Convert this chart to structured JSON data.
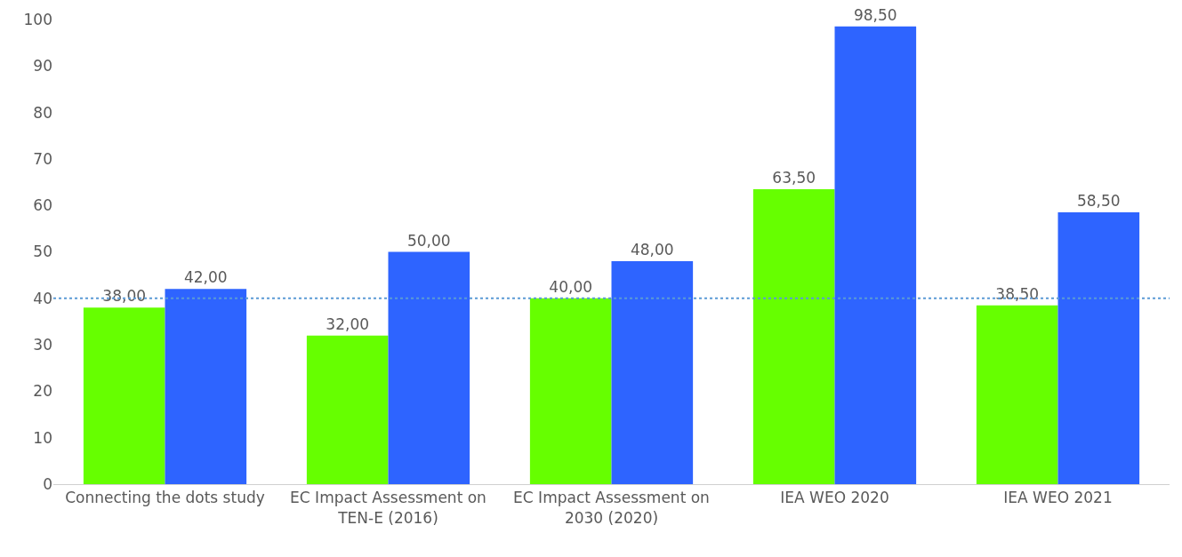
{
  "chart_data": {
    "type": "bar",
    "categories": [
      "Connecting the dots study",
      "EC Impact Assessment on TEN-E (2016)",
      "EC Impact Assessment on 2030 (2020)",
      "IEA WEO 2020",
      "IEA WEO 2021"
    ],
    "series": [
      {
        "color": "#66ff00",
        "values": [
          38,
          32,
          40,
          63.5,
          38.5
        ],
        "value_labels": [
          "38,00",
          "32,00",
          "40,00",
          "63,50",
          "38,50"
        ]
      },
      {
        "color": "#2e64ff",
        "values": [
          42,
          50,
          48,
          98.5,
          58.5
        ],
        "value_labels": [
          "42,00",
          "50,00",
          "48,00",
          "98,50",
          "58,50"
        ]
      }
    ],
    "ylim": [
      0,
      100
    ],
    "yticks": [
      0,
      10,
      20,
      30,
      40,
      50,
      60,
      70,
      80,
      90,
      100
    ],
    "grid": false,
    "ref_lines": [
      {
        "axis": "y",
        "value": 40,
        "color": "#5b9bd5",
        "line_style": "dotted"
      }
    ]
  }
}
